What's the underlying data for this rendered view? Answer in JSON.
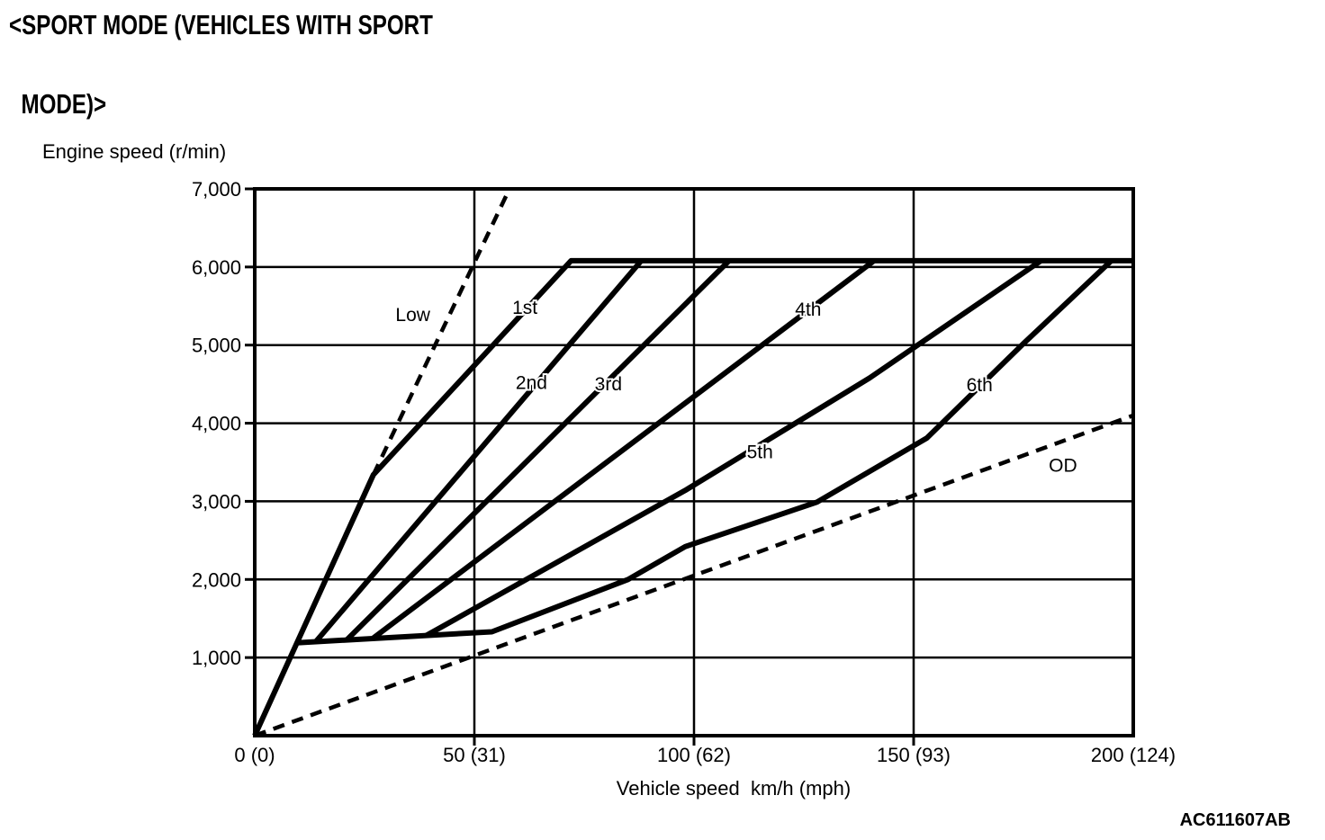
{
  "page": {
    "title_line1": "<SPORT MODE (VEHICLES WITH SPORT",
    "title_line2": "MODE)>",
    "figure_code": "AC611607AB"
  },
  "chart_data": {
    "type": "line",
    "title": "<SPORT MODE (VEHICLES WITH SPORT MODE)>",
    "xlabel": "Vehicle speed  km/h (mph)",
    "ylabel": "Engine speed (r/min)",
    "xlim": [
      0,
      200
    ],
    "ylim": [
      0,
      7000
    ],
    "grid": true,
    "legend_position": "inline-labels",
    "line_color": "#000000",
    "background": "#ffffff",
    "x_ticks": [
      {
        "v": 0,
        "label": "0 (0)"
      },
      {
        "v": 50,
        "label": "50 (31)"
      },
      {
        "v": 100,
        "label": "100 (62)"
      },
      {
        "v": 150,
        "label": "150 (93)"
      },
      {
        "v": 200,
        "label": "200 (124)"
      }
    ],
    "y_ticks": [
      {
        "v": 1000,
        "label": "1,000"
      },
      {
        "v": 2000,
        "label": "2,000"
      },
      {
        "v": 3000,
        "label": "3,000"
      },
      {
        "v": 4000,
        "label": "4,000"
      },
      {
        "v": 5000,
        "label": "5,000"
      },
      {
        "v": 6000,
        "label": "6,000"
      },
      {
        "v": 7000,
        "label": "7,000"
      }
    ],
    "series": [
      {
        "name": "Low",
        "style": "dashed",
        "points": [
          [
            27,
            3340
          ],
          [
            58,
            7000
          ]
        ],
        "label_pos": [
          36,
          5390
        ]
      },
      {
        "name": "1st",
        "style": "solid",
        "points": [
          [
            0,
            0
          ],
          [
            27,
            3340
          ],
          [
            72,
            6080
          ],
          [
            200,
            6080
          ]
        ],
        "label_pos": [
          61.5,
          5480
        ]
      },
      {
        "name": "2nd",
        "style": "solid",
        "points": [
          [
            14,
            1210
          ],
          [
            88,
            6080
          ]
        ],
        "label_pos": [
          63,
          4520
        ]
      },
      {
        "name": "3rd",
        "style": "solid",
        "points": [
          [
            21,
            1230
          ],
          [
            108,
            6080
          ]
        ],
        "label_pos": [
          80.5,
          4500
        ]
      },
      {
        "name": "4th",
        "style": "solid",
        "points": [
          [
            27,
            1250
          ],
          [
            141,
            6080
          ]
        ],
        "label_pos": [
          126,
          5460
        ]
      },
      {
        "name": "5th",
        "style": "solid",
        "points": [
          [
            39,
            1280
          ],
          [
            98,
            3140
          ],
          [
            140,
            4580
          ],
          [
            179,
            6080
          ]
        ],
        "label_pos": [
          115,
          3630
        ]
      },
      {
        "name": "6th",
        "style": "solid",
        "points": [
          [
            10,
            1190
          ],
          [
            54,
            1330
          ],
          [
            85,
            2000
          ],
          [
            98,
            2420
          ],
          [
            128,
            2990
          ],
          [
            153,
            3810
          ],
          [
            175,
            5020
          ],
          [
            195,
            6080
          ]
        ],
        "label_pos": [
          165,
          4490
        ]
      },
      {
        "name": "OD",
        "style": "dashed",
        "points": [
          [
            0,
            0
          ],
          [
            200,
            4100
          ]
        ],
        "label_pos": [
          184,
          3460
        ]
      }
    ]
  }
}
